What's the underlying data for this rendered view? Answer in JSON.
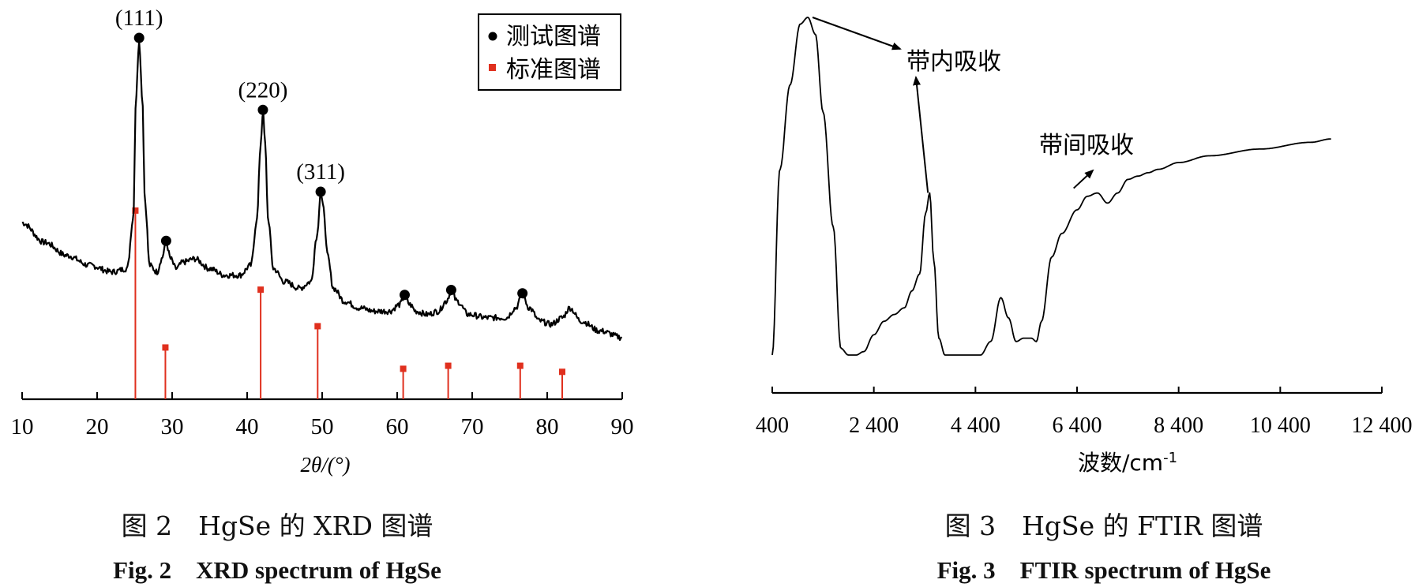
{
  "chart_data": [
    {
      "type": "line",
      "title": "",
      "xlabel": "2θ/(°)",
      "ylabel": "",
      "xlim": [
        10,
        90
      ],
      "x_ticks": [
        "10",
        "20",
        "30",
        "40",
        "50",
        "60",
        "70",
        "80",
        "90"
      ],
      "legend": {
        "placement": "top-right",
        "entries": [
          {
            "label": "测试图谱",
            "marker": "circle",
            "color": "#000000"
          },
          {
            "label": "标准图谱",
            "marker": "square",
            "color": "#e0301e"
          }
        ]
      },
      "series": [
        {
          "name": "测试图谱",
          "color": "#000000",
          "x": [
            10,
            13,
            16,
            19,
            22,
            24,
            24.8,
            25.2,
            25.6,
            26.0,
            26.4,
            27.0,
            28,
            28.6,
            29.2,
            29.8,
            30.5,
            31.5,
            33,
            35,
            37,
            39,
            40.5,
            41.3,
            41.8,
            42.1,
            42.4,
            42.8,
            43.5,
            45,
            47,
            48.5,
            49.3,
            49.8,
            50.2,
            50.7,
            51.5,
            53,
            55,
            57,
            59,
            60.3,
            61,
            61.7,
            62.5,
            64,
            65.5,
            66.5,
            67.2,
            68,
            69.5,
            72,
            74.5,
            75.8,
            76.7,
            77.6,
            79,
            80.5,
            82,
            83,
            84.5,
            87,
            90
          ],
          "y": [
            0.44,
            0.38,
            0.34,
            0.31,
            0.29,
            0.3,
            0.45,
            0.83,
            1.0,
            0.83,
            0.5,
            0.31,
            0.29,
            0.33,
            0.38,
            0.33,
            0.3,
            0.32,
            0.33,
            0.3,
            0.28,
            0.28,
            0.31,
            0.45,
            0.68,
            0.78,
            0.68,
            0.45,
            0.3,
            0.26,
            0.24,
            0.26,
            0.4,
            0.53,
            0.48,
            0.34,
            0.24,
            0.2,
            0.18,
            0.17,
            0.17,
            0.19,
            0.215,
            0.19,
            0.17,
            0.16,
            0.17,
            0.2,
            0.23,
            0.2,
            0.16,
            0.15,
            0.15,
            0.18,
            0.22,
            0.18,
            0.14,
            0.13,
            0.15,
            0.18,
            0.14,
            0.11,
            0.09
          ]
        },
        {
          "name": "标准图谱",
          "color": "#e0301e",
          "type": "stem",
          "x": [
            25.1,
            29.1,
            41.8,
            49.4,
            60.8,
            66.8,
            76.4,
            82.0
          ],
          "y": [
            0.62,
            0.17,
            0.36,
            0.24,
            0.1,
            0.11,
            0.11,
            0.09
          ]
        }
      ],
      "annotations": [
        {
          "text": "(111)",
          "x": 25.6
        },
        {
          "text": "(220)",
          "x": 42.1
        },
        {
          "text": "(311)",
          "x": 49.8
        }
      ],
      "peak_markers_x": [
        25.6,
        29.2,
        42.1,
        49.8,
        61.0,
        67.2,
        76.7
      ]
    },
    {
      "type": "line",
      "title": "",
      "xlabel": "波数/cm",
      "xlabel_sup": "-1",
      "ylabel": "",
      "xlim": [
        400,
        12400
      ],
      "x_ticks": [
        "400",
        "2 400",
        "4 400",
        "6 400",
        "8 400",
        "10 400",
        "12 400"
      ],
      "series": [
        {
          "name": "",
          "color": "#000000",
          "x": [
            400,
            550,
            750,
            950,
            1100,
            1250,
            1400,
            1600,
            1750,
            1900,
            2050,
            2200,
            2400,
            2600,
            2800,
            3000,
            3150,
            3300,
            3420,
            3500,
            3580,
            3680,
            3800,
            4000,
            4500,
            4700,
            4900,
            5050,
            5200,
            5350,
            5500,
            5600,
            5700,
            5900,
            6100,
            6400,
            6600,
            6800,
            7000,
            7200,
            7400,
            7600,
            7800,
            8000,
            8400,
            9000,
            10000,
            11000,
            11400
          ],
          "y": [
            0.0,
            0.55,
            0.8,
            0.98,
            1.0,
            0.95,
            0.72,
            0.38,
            0.02,
            0.0,
            0.0,
            0.01,
            0.06,
            0.1,
            0.12,
            0.14,
            0.19,
            0.24,
            0.42,
            0.48,
            0.28,
            0.05,
            0.0,
            0.0,
            0.0,
            0.04,
            0.17,
            0.11,
            0.04,
            0.05,
            0.05,
            0.04,
            0.1,
            0.29,
            0.36,
            0.43,
            0.47,
            0.48,
            0.45,
            0.48,
            0.52,
            0.53,
            0.54,
            0.55,
            0.57,
            0.59,
            0.61,
            0.63,
            0.64
          ]
        }
      ],
      "annotations": [
        {
          "text": "带内吸收",
          "points_to_x": [
            1100,
            3480
          ]
        },
        {
          "text": "带间吸收",
          "points_to_x": [
            6800
          ]
        }
      ]
    }
  ],
  "captions": {
    "fig2_cn": "图 2　HgSe 的 XRD 图谱",
    "fig2_en": "Fig. 2　XRD spectrum of HgSe",
    "fig3_cn": "图 3　HgSe 的 FTIR 图谱",
    "fig3_en": "Fig. 3　FTIR spectrum of HgSe"
  }
}
